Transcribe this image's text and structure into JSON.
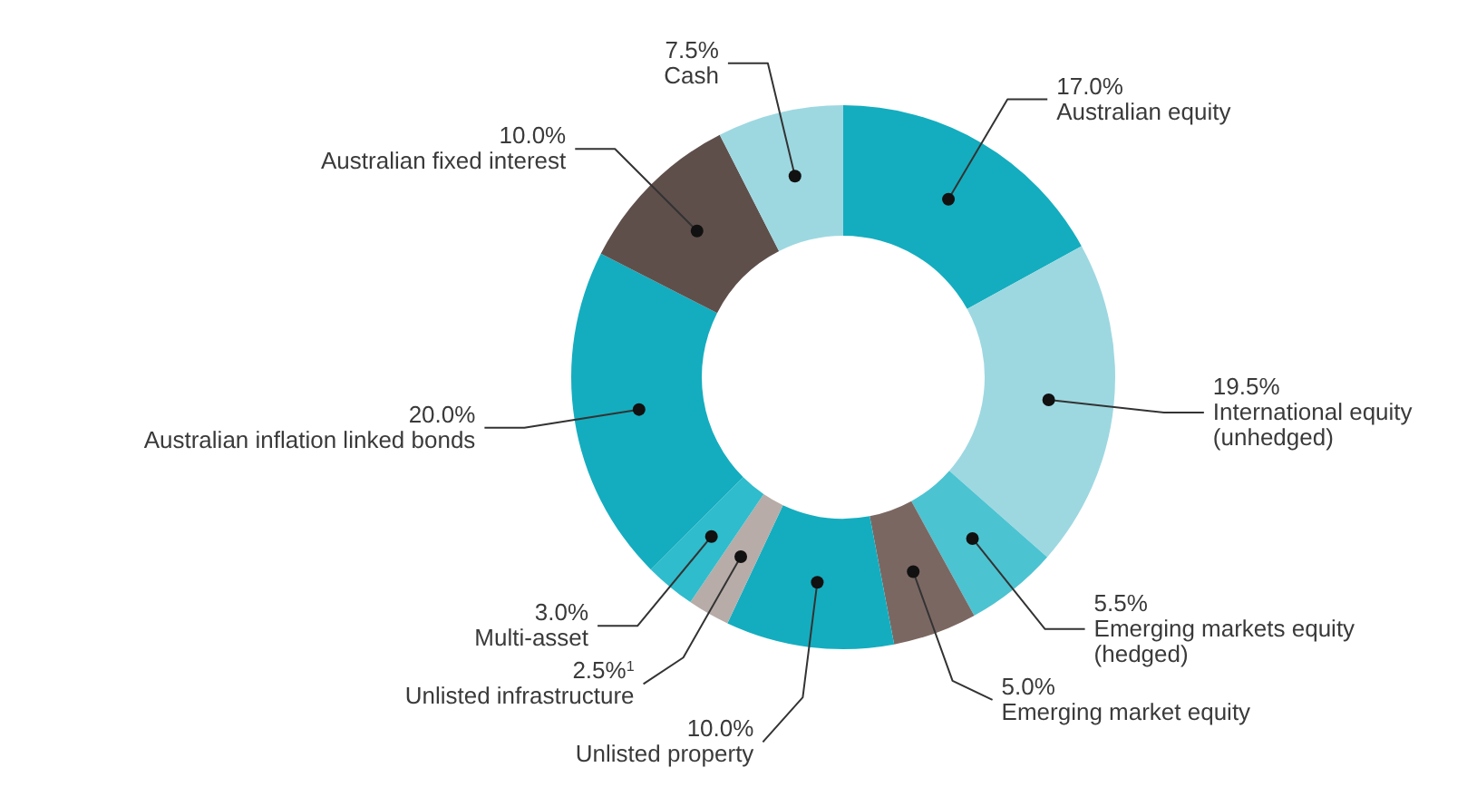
{
  "chart_data": {
    "type": "donut",
    "categories": [
      "Australian equity",
      "International equity\n(unhedged)",
      "Emerging markets equity\n(hedged)",
      "Emerging market equity",
      "Unlisted property",
      "Unlisted infrastructure",
      "Multi-asset",
      "Australian inflation linked bonds",
      "Australian fixed interest",
      "Cash"
    ],
    "values": [
      17.0,
      19.5,
      5.5,
      5.0,
      10.0,
      2.5,
      3.0,
      20.0,
      10.0,
      7.5
    ],
    "value_labels": [
      "17.0%",
      "19.5%",
      "5.5%",
      "5.0%",
      "10.0%",
      "2.5%$^{1}$",
      "3.0%",
      "20.0%",
      "10.0%",
      "7.5%"
    ],
    "colors": [
      "#14adbf",
      "#9dd8e1",
      "#4cc3d1",
      "#7b6762",
      "#14adbf",
      "#b7aca8",
      "#2fbccc",
      "#14adbf",
      "#5f4f4b",
      "#9dd8e1"
    ]
  }
}
